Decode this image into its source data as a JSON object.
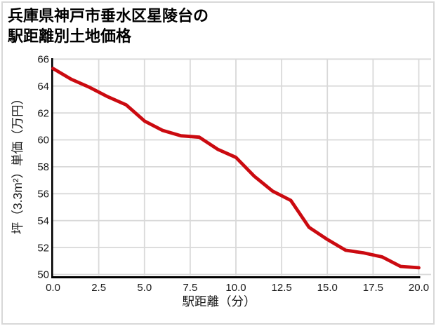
{
  "title": {
    "line1": "兵庫県神戸市垂水区星陵台の",
    "line2": "駅距離別土地価格"
  },
  "chart_data": {
    "type": "line",
    "title": "兵庫県神戸市垂水区星陵台の駅距離別土地価格",
    "x": [
      0,
      1,
      2,
      3,
      4,
      5,
      6,
      7,
      8,
      9,
      10,
      11,
      12,
      13,
      14,
      15,
      16,
      17,
      18,
      19,
      20
    ],
    "values": [
      65.3,
      64.5,
      63.9,
      63.2,
      62.6,
      61.4,
      60.7,
      60.3,
      60.2,
      59.3,
      58.7,
      57.3,
      56.2,
      55.5,
      53.5,
      52.6,
      51.8,
      51.6,
      51.3,
      50.6,
      50.5
    ],
    "xlabel": "駅距離（分）",
    "ylabel": "坪（3.3m²）単価（万円）",
    "xlim": [
      0,
      20.7
    ],
    "ylim": [
      50,
      66
    ],
    "x_ticks": [
      0,
      2.5,
      5,
      7.5,
      10,
      12.5,
      15,
      17.5,
      20
    ],
    "x_tick_labels": [
      "0.0",
      "2.5",
      "5.0",
      "7.5",
      "10.0",
      "12.5",
      "15.0",
      "17.5",
      "20.0"
    ],
    "y_ticks": [
      50,
      52,
      54,
      56,
      58,
      60,
      62,
      64,
      66
    ],
    "y_tick_labels": [
      "50",
      "52",
      "54",
      "56",
      "58",
      "60",
      "62",
      "64",
      "66"
    ],
    "grid": true,
    "legend_position": "none",
    "line_color": "#cb0a10",
    "grid_color": "#d9d9d9",
    "axis_color": "#000000"
  }
}
